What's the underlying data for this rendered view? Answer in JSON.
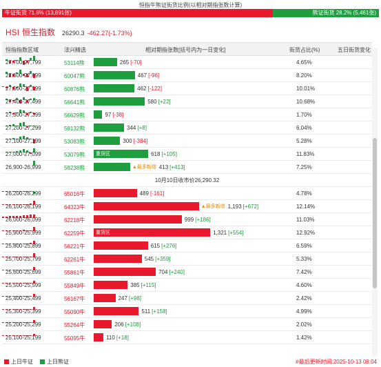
{
  "header": {
    "title": "恒指牛熊证街货比例(以相对期指张数计算)",
    "bull_label": "牛证街货 71.8% (13,891张)",
    "bear_label": "熊证街货 28.2% (5,461张)",
    "bull_pct": 71.8,
    "bear_pct": 28.2
  },
  "index": {
    "code": "HSI",
    "name": "恒生指数",
    "price": "26290.3",
    "change": "-462.27(-1.73%)"
  },
  "table": {
    "headers": {
      "range": "恒指指数区域",
      "code": "法兴精选",
      "bar": "相对期指张数[括号内为一日变化]",
      "pct": "街货占比(%)",
      "mini": "五日街货变化"
    },
    "new_high_label": "最多新增",
    "heavy_label": "重货区",
    "close_label": "10月10日收市价26,290.32",
    "bear_rows": [
      {
        "range": "27,700-27,799",
        "code": "53114熊",
        "value": 265,
        "value_text": "265",
        "change": "[-70]",
        "pct": "4.65%",
        "heavy": false,
        "newhigh": false,
        "mini": [
          0,
          2,
          -4,
          -3,
          1,
          5,
          -6,
          -3,
          4,
          8
        ]
      },
      {
        "range": "27,600-27,699",
        "code": "60047熊",
        "value": 467,
        "value_text": "467",
        "change": "[-96]",
        "pct": "8.20%",
        "heavy": false,
        "newhigh": false,
        "mini": [
          0,
          3,
          -5,
          -4,
          2,
          6,
          -3,
          -5,
          4,
          -6
        ]
      },
      {
        "range": "27,500-27,599",
        "code": "60876熊",
        "value": 462,
        "value_text": "462",
        "change": "[-122]",
        "pct": "10.01%",
        "heavy": false,
        "newhigh": false,
        "mini": [
          1,
          -2,
          3,
          -4,
          -2,
          5,
          4,
          -6,
          3,
          -5
        ]
      },
      {
        "range": "27,400-27,499",
        "code": "56641熊",
        "value": 580,
        "value_text": "580",
        "change": "[+22]",
        "pct": "10.68%",
        "heavy": false,
        "newhigh": false,
        "mini": [
          0,
          2,
          -3,
          -2,
          3,
          -5,
          4,
          -4,
          2,
          3
        ]
      },
      {
        "range": "27,300-27,399",
        "code": "56629熊",
        "value": 97,
        "value_text": "97",
        "change": "[-38]",
        "pct": "1.70%",
        "heavy": false,
        "newhigh": false,
        "mini": [
          0,
          1,
          2,
          -2,
          1,
          5,
          4,
          -3,
          2,
          -2
        ]
      },
      {
        "range": "27,200-27,299",
        "code": "58132熊",
        "value": 344,
        "value_text": "344",
        "change": "[+8]",
        "pct": "6.04%",
        "heavy": false,
        "newhigh": false,
        "mini": [
          0,
          1,
          2,
          3,
          1,
          5,
          6,
          -2,
          1,
          1
        ]
      },
      {
        "range": "27,100-27,199",
        "code": "53083熊",
        "value": 300,
        "value_text": "300",
        "change": "[-384]",
        "pct": "5.28%",
        "heavy": false,
        "newhigh": false,
        "mini": [
          0,
          1,
          1,
          2,
          1,
          4,
          5,
          3,
          1,
          -6
        ]
      },
      {
        "range": "27,000-27,099",
        "code": "53079熊",
        "value": 618,
        "value_text": "618",
        "change": "[+105]",
        "pct": "11.83%",
        "heavy": true,
        "newhigh": false,
        "mini": [
          0,
          1,
          1,
          1,
          2,
          3,
          5,
          3,
          -2,
          6
        ]
      },
      {
        "range": "26,900-26,999",
        "code": "58238熊",
        "value": 413,
        "value_text": "413",
        "change": "[+413]",
        "pct": "7.25%",
        "heavy": false,
        "newhigh": true,
        "mini": [
          0,
          0,
          0,
          0,
          0,
          0,
          0,
          0,
          0,
          7
        ]
      }
    ],
    "bull_rows": [
      {
        "range": "26,200-26,299",
        "code": "65016牛",
        "value": 489,
        "value_text": "489",
        "change": "[-161]",
        "pct": "4.78%",
        "heavy": false,
        "newhigh": false,
        "mini": [
          1,
          1,
          1,
          1,
          1,
          1,
          1,
          1,
          1,
          -3
        ]
      },
      {
        "range": "26,100-26,199",
        "code": "64323牛",
        "value": 1193,
        "value_text": "1,193",
        "change": "[+672]",
        "pct": "12.14%",
        "heavy": false,
        "newhigh": true,
        "mini": [
          1,
          1,
          1,
          1,
          1,
          1,
          1,
          1,
          2,
          6
        ]
      },
      {
        "range": "26,000-26,099",
        "code": "62218牛",
        "value": 999,
        "value_text": "999",
        "change": "[+186]",
        "pct": "11.03%",
        "heavy": false,
        "newhigh": false,
        "mini": [
          2,
          2,
          3,
          3,
          3,
          3,
          4,
          4,
          5,
          5
        ]
      },
      {
        "range": "25,900-25,999",
        "code": "62259牛",
        "value": 1321,
        "value_text": "1,321",
        "change": "[+554]",
        "pct": "12.92%",
        "heavy": true,
        "newhigh": false,
        "mini": [
          1,
          1,
          1,
          1,
          1,
          1,
          2,
          1,
          1,
          6
        ]
      },
      {
        "range": "25,800-25,899",
        "code": "56221牛",
        "value": 615,
        "value_text": "615",
        "change": "[+276]",
        "pct": "6.59%",
        "heavy": false,
        "newhigh": false,
        "mini": [
          1,
          1,
          1,
          1,
          1,
          1,
          1,
          1,
          2,
          5
        ]
      },
      {
        "range": "25,700-25,799",
        "code": "62261牛",
        "value": 545,
        "value_text": "545",
        "change": "[+359]",
        "pct": "5.33%",
        "heavy": false,
        "newhigh": false,
        "mini": [
          1,
          1,
          1,
          1,
          1,
          1,
          1,
          1,
          1,
          6
        ]
      },
      {
        "range": "25,600-25,699",
        "code": "55861牛",
        "value": 704,
        "value_text": "704",
        "change": "[+240]",
        "pct": "7.42%",
        "heavy": false,
        "newhigh": false,
        "mini": [
          1,
          1,
          1,
          1,
          1,
          1,
          1,
          1,
          1,
          5
        ]
      },
      {
        "range": "25,500-25,599",
        "code": "55849牛",
        "value": 385,
        "value_text": "385",
        "change": "[+115]",
        "pct": "4.60%",
        "heavy": false,
        "newhigh": false,
        "mini": [
          1,
          1,
          1,
          1,
          1,
          1,
          1,
          1,
          1,
          4
        ]
      },
      {
        "range": "25,400-25,499",
        "code": "56167牛",
        "value": 247,
        "value_text": "247",
        "change": "[+98]",
        "pct": "2.42%",
        "heavy": false,
        "newhigh": false,
        "mini": [
          1,
          1,
          1,
          1,
          1,
          1,
          1,
          1,
          1,
          4
        ]
      },
      {
        "range": "25,300-25,399",
        "code": "55090牛",
        "value": 511,
        "value_text": "511",
        "change": "[+158]",
        "pct": "4.99%",
        "heavy": false,
        "newhigh": false,
        "mini": [
          1,
          1,
          1,
          1,
          1,
          1,
          1,
          1,
          1,
          4
        ]
      },
      {
        "range": "25,200-25,299",
        "code": "55264牛",
        "value": 206,
        "value_text": "206",
        "change": "[+108]",
        "pct": "2.02%",
        "heavy": false,
        "newhigh": false,
        "mini": [
          1,
          1,
          1,
          1,
          1,
          1,
          1,
          1,
          1,
          4
        ]
      },
      {
        "range": "25,100-25,199",
        "code": "55095牛",
        "value": 110,
        "value_text": "110",
        "change": "[+18]",
        "pct": "1.42%",
        "heavy": false,
        "newhigh": false,
        "mini": [
          1,
          1,
          1,
          1,
          1,
          1,
          1,
          1,
          1,
          3
        ]
      }
    ]
  },
  "legend": {
    "bull": "上日牛证",
    "bear": "上日熊证"
  },
  "footer": {
    "updated": "#最后更新时间:2025-10-13 08:04"
  },
  "colors": {
    "bull": "#e8192c",
    "bear": "#1e9e3e",
    "accent_new": "#f08a00"
  }
}
